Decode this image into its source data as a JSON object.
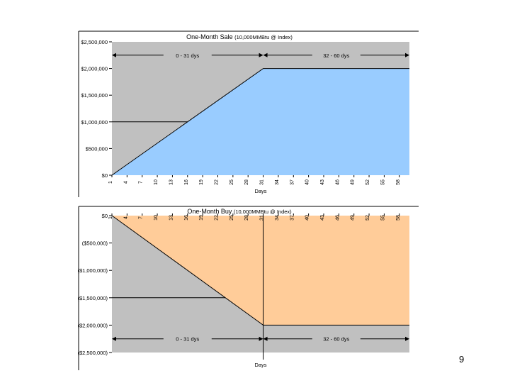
{
  "page_number": "9",
  "colors": {
    "plot_bg": "#c0c0c0",
    "sale_fill": "#99ccff",
    "buy_fill": "#ffcc99",
    "line": "#000000",
    "frame": "#000000"
  },
  "chart_data": [
    {
      "type": "area",
      "title": "One-Month Sale",
      "subtitle": "(10,000MMBtu @ Index)",
      "xlabel": "Days",
      "ylabel": "",
      "x_ticks": [
        "1",
        "4",
        "7",
        "10",
        "13",
        "16",
        "19",
        "22",
        "25",
        "28",
        "31",
        "34",
        "37",
        "40",
        "43",
        "46",
        "49",
        "52",
        "55",
        "58"
      ],
      "xlim": [
        1,
        60
      ],
      "y_ticks": [
        "$0",
        "$500,000",
        "$1,000,000",
        "$1,500,000",
        "$2,000,000",
        "$2,500,000"
      ],
      "ylim": [
        0,
        2500000
      ],
      "series": [
        {
          "x": [
            1,
            31,
            60
          ],
          "values": [
            0,
            2000000,
            2000000
          ]
        }
      ],
      "reference_line_y": 1000000,
      "annotations": [
        {
          "text": "0 - 31 dys",
          "x_from": 1,
          "x_to": 31,
          "y": 2250000
        },
        {
          "text": "32 - 60 dys",
          "x_from": 31,
          "x_to": 60,
          "y": 2250000
        }
      ]
    },
    {
      "type": "area",
      "title": "One-Month Buy",
      "subtitle": "(10,000MMBtu @ Index)",
      "xlabel": "Days",
      "ylabel": "",
      "x_ticks": [
        "1",
        "4",
        "7",
        "10",
        "13",
        "16",
        "19",
        "22",
        "25",
        "28",
        "31",
        "34",
        "37",
        "40",
        "43",
        "46",
        "49",
        "52",
        "55",
        "58"
      ],
      "xlim": [
        1,
        60
      ],
      "y_ticks": [
        "$0",
        "($500,000)",
        "($1,000,000)",
        "($1,500,000)",
        "($2,000,000)",
        "($2,500,000)"
      ],
      "ylim": [
        -2500000,
        0
      ],
      "series": [
        {
          "x": [
            1,
            31,
            60
          ],
          "values": [
            0,
            -2000000,
            -2000000
          ]
        }
      ],
      "reference_line_y": -1500000,
      "annotations": [
        {
          "text": "0 - 31 dys",
          "x_from": 1,
          "x_to": 31,
          "y": -2250000
        },
        {
          "text": "32 - 60 dys",
          "x_from": 31,
          "x_to": 60,
          "y": -2250000
        }
      ]
    }
  ]
}
